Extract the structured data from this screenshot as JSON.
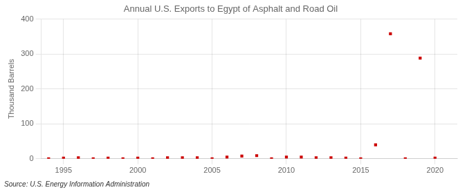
{
  "chart_data": {
    "type": "scatter",
    "title": "Annual U.S. Exports to Egypt of Asphalt and Road Oil",
    "ylabel": "Thousand Barrels",
    "annotations": [
      "Source: U.S. Energy Information Administration"
    ],
    "x": [
      1994,
      1995,
      1996,
      1997,
      1998,
      1999,
      2000,
      2001,
      2002,
      2003,
      2004,
      2005,
      2006,
      2007,
      2008,
      2009,
      2010,
      2011,
      2012,
      2013,
      2014,
      2015,
      2016,
      2017,
      2018,
      2019,
      2020
    ],
    "values": [
      0,
      2,
      3,
      0,
      2,
      0,
      2,
      0,
      3,
      3,
      3,
      0,
      5,
      8,
      9,
      0,
      5,
      5,
      3,
      3,
      2,
      0,
      40,
      358,
      0,
      288,
      2
    ],
    "color": "#cc0000",
    "marker": "square",
    "xlim": [
      1993.5,
      2021.5
    ],
    "ylim": [
      0,
      400
    ],
    "xticks": [
      1995,
      2000,
      2005,
      2010,
      2015,
      2020
    ],
    "yticks": [
      0,
      100,
      200,
      300,
      400
    ],
    "grid": true
  }
}
